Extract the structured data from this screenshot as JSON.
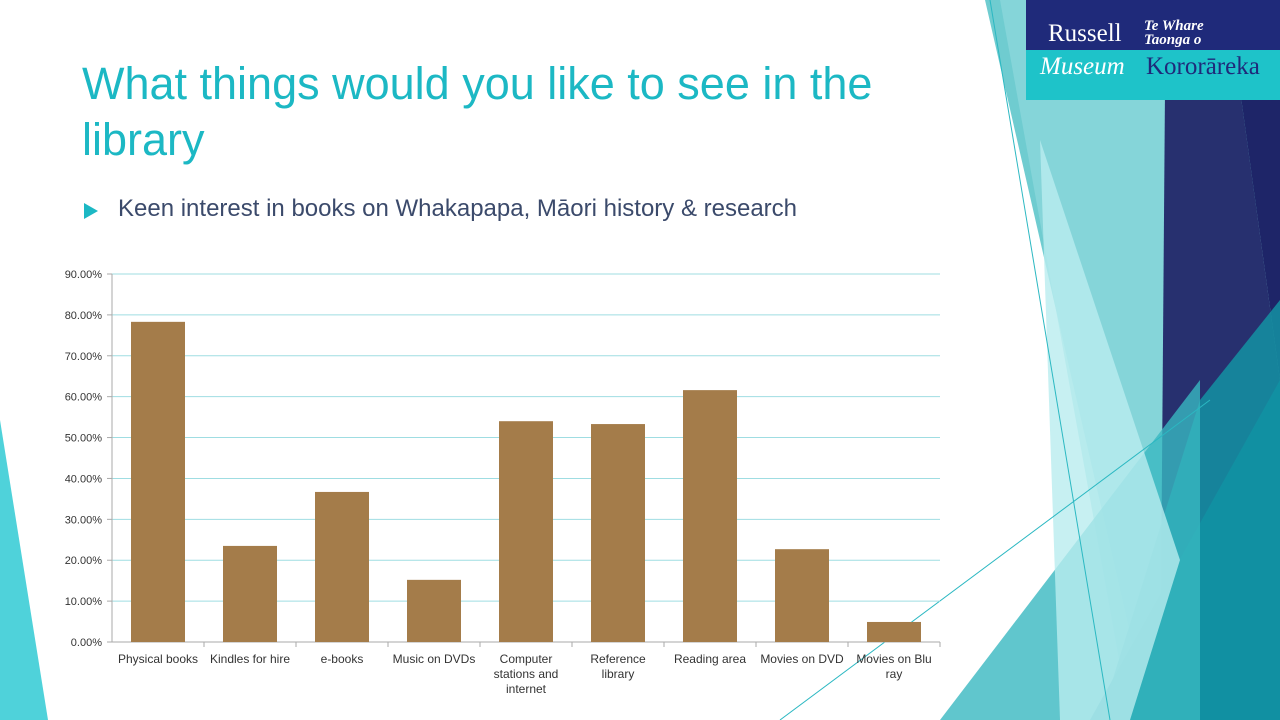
{
  "slide": {
    "title": "What things would you like to see in the library",
    "bullet": "Keen interest in books on Whakapapa, Māori history & research",
    "logo": {
      "russell": "Russell",
      "te_whare": "Te Whare",
      "taonga_o": "Taonga o",
      "museum": "Museum",
      "kororareka": "Kororāreka"
    }
  },
  "chart_data": {
    "type": "bar",
    "categories": [
      "Physical books",
      "Kindles for hire",
      "e-books",
      "Music on DVDs",
      "Computer stations and internet",
      "Reference library",
      "Reading area",
      "Movies on DVD",
      "Movies on Blu ray"
    ],
    "values": [
      78.3,
      23.5,
      36.7,
      15.2,
      54.0,
      53.3,
      61.6,
      22.7,
      4.9
    ],
    "color": "#a47c4a",
    "ylim": [
      0,
      90
    ],
    "yticks": [
      {
        "value": 0,
        "label": "0.00%"
      },
      {
        "value": 10,
        "label": "10.00%"
      },
      {
        "value": 20,
        "label": "20.00%"
      },
      {
        "value": 30,
        "label": "30.00%"
      },
      {
        "value": 40,
        "label": "40.00%"
      },
      {
        "value": 50,
        "label": "50.00%"
      },
      {
        "value": 60,
        "label": "60.00%"
      },
      {
        "value": 70,
        "label": "70.00%"
      },
      {
        "value": 80,
        "label": "80.00%"
      },
      {
        "value": 90,
        "label": "90.00%"
      }
    ],
    "grid": true
  }
}
